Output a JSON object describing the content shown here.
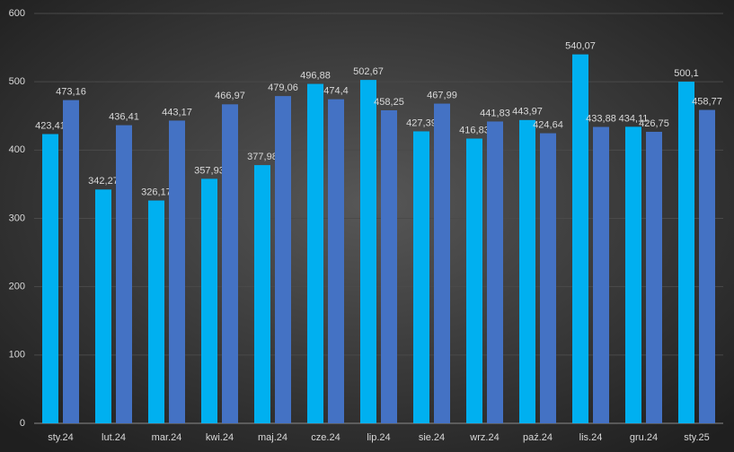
{
  "chart_data": {
    "type": "bar",
    "categories": [
      "sty.24",
      "lut.24",
      "mar.24",
      "kwi.24",
      "maj.24",
      "cze.24",
      "lip.24",
      "sie.24",
      "wrz.24",
      "paź.24",
      "lis.24",
      "gru.24",
      "sty.25"
    ],
    "series": [
      {
        "color": "#00b0f0",
        "values": [
          423.41,
          342.27,
          326.17,
          357.93,
          377.98,
          496.88,
          502.67,
          427.39,
          416.83,
          443.97,
          540.07,
          434.11,
          500.1
        ],
        "value_labels": [
          "423,41",
          "342,27",
          "326,17",
          "357,93",
          "377,98",
          "496,88",
          "502,67",
          "427,39",
          "416,83",
          "443,97",
          "540,07",
          "434,11",
          "500,1"
        ]
      },
      {
        "color": "#4472c4",
        "values": [
          473.16,
          436.41,
          443.17,
          466.97,
          479.06,
          474.4,
          458.25,
          467.99,
          441.83,
          424.64,
          433.88,
          426.75,
          458.77
        ],
        "value_labels": [
          "473,16",
          "436,41",
          "443,17",
          "466,97",
          "479,06",
          "474,4",
          "458,25",
          "467,99",
          "441,83",
          "424,64",
          "433,88",
          "426,75",
          "458,77"
        ]
      }
    ],
    "ylim": [
      0,
      600
    ],
    "yticks": [
      0,
      100,
      200,
      300,
      400,
      500,
      600
    ],
    "grid": true
  }
}
